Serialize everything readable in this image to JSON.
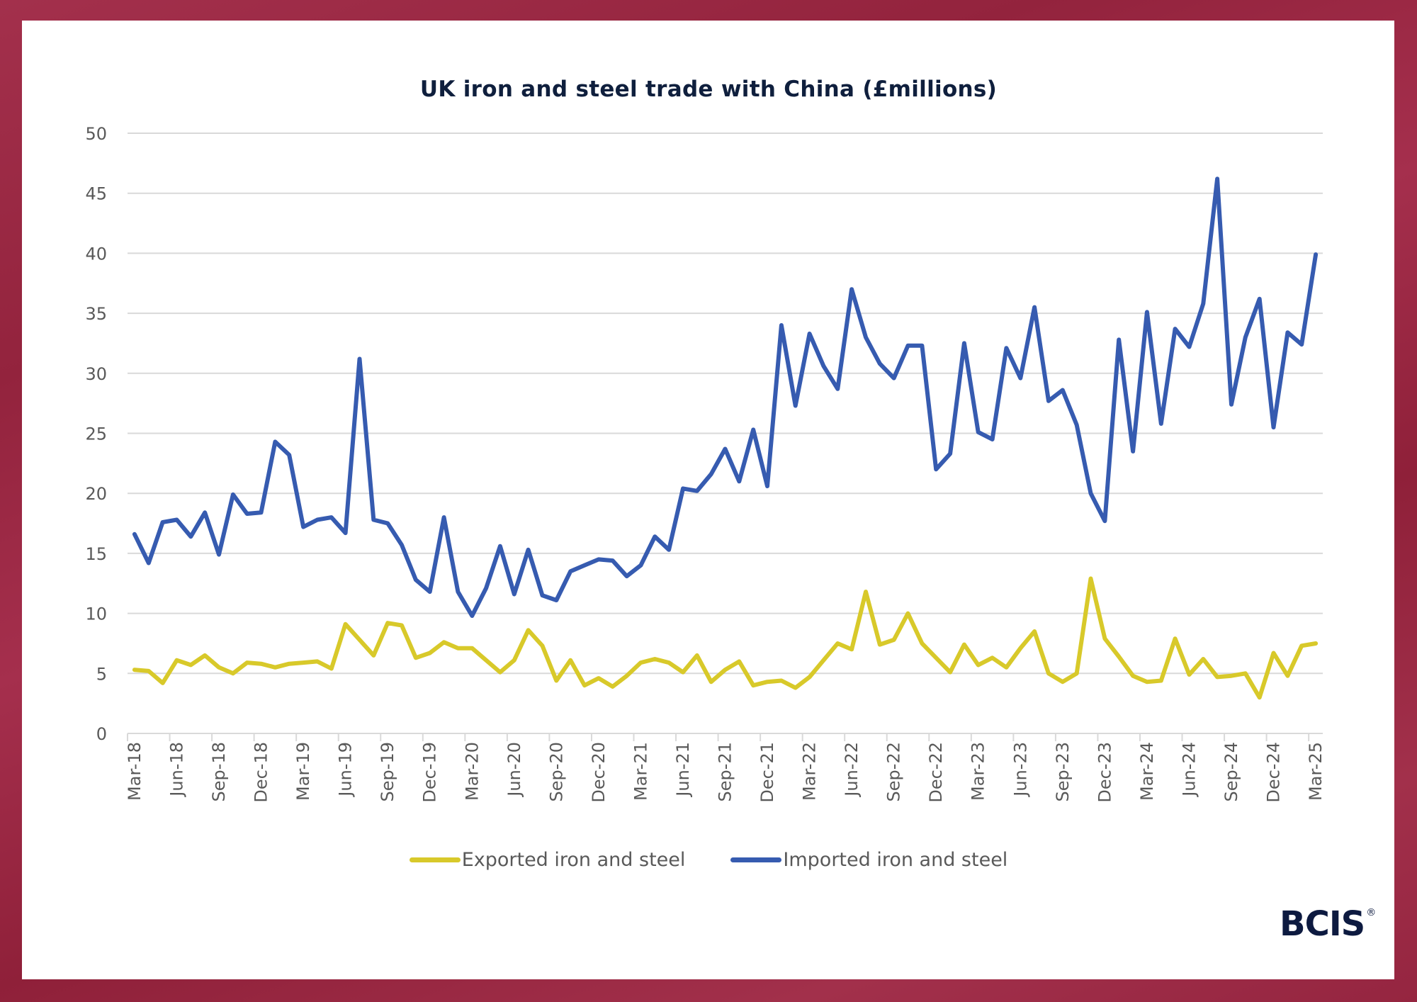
{
  "brand": {
    "logo_text": "BCIS",
    "logo_mark": "®"
  },
  "colors": {
    "exported": "#d8c92a",
    "imported": "#365bb0",
    "grid": "#d9d9d9",
    "background": "#9a2540"
  },
  "chart_data": {
    "type": "line",
    "title": "UK iron and steel trade with China (£millions)",
    "xlabel": "",
    "ylabel": "",
    "ylim": [
      0,
      50
    ],
    "yticks": [
      0,
      5,
      10,
      15,
      20,
      25,
      30,
      35,
      40,
      45,
      50
    ],
    "grid": true,
    "legend_position": "bottom",
    "x": [
      "Mar-18",
      "Apr-18",
      "May-18",
      "Jun-18",
      "Jul-18",
      "Aug-18",
      "Sep-18",
      "Oct-18",
      "Nov-18",
      "Dec-18",
      "Jan-19",
      "Feb-19",
      "Mar-19",
      "Apr-19",
      "May-19",
      "Jun-19",
      "Jul-19",
      "Aug-19",
      "Sep-19",
      "Oct-19",
      "Nov-19",
      "Dec-19",
      "Jan-20",
      "Feb-20",
      "Mar-20",
      "Apr-20",
      "May-20",
      "Jun-20",
      "Jul-20",
      "Aug-20",
      "Sep-20",
      "Oct-20",
      "Nov-20",
      "Dec-20",
      "Jan-21",
      "Feb-21",
      "Mar-21",
      "Apr-21",
      "May-21",
      "Jun-21",
      "Jul-21",
      "Aug-21",
      "Sep-21",
      "Oct-21",
      "Nov-21",
      "Dec-21",
      "Jan-22",
      "Feb-22",
      "Mar-22",
      "Apr-22",
      "May-22",
      "Jun-22",
      "Jul-22",
      "Aug-22",
      "Sep-22",
      "Oct-22",
      "Nov-22",
      "Dec-22",
      "Jan-23",
      "Feb-23",
      "Mar-23",
      "Apr-23",
      "May-23",
      "Jun-23",
      "Jul-23",
      "Aug-23",
      "Sep-23",
      "Oct-23",
      "Nov-23",
      "Dec-23",
      "Jan-24",
      "Feb-24",
      "Mar-24",
      "Apr-24",
      "May-24",
      "Jun-24",
      "Jul-24",
      "Aug-24",
      "Sep-24",
      "Oct-24",
      "Nov-24",
      "Dec-24",
      "Jan-25",
      "Feb-25",
      "Mar-25"
    ],
    "xtick_labels": [
      "Mar-18",
      "Jun-18",
      "Sep-18",
      "Dec-18",
      "Mar-19",
      "Jun-19",
      "Sep-19",
      "Dec-19",
      "Mar-20",
      "Jun-20",
      "Sep-20",
      "Dec-20",
      "Mar-21",
      "Jun-21",
      "Sep-21",
      "Dec-21",
      "Mar-22",
      "Jun-22",
      "Sep-22",
      "Dec-22",
      "Mar-23",
      "Jun-23",
      "Sep-23",
      "Dec-23",
      "Mar-24",
      "Jun-24",
      "Sep-24",
      "Dec-24",
      "Mar-25"
    ],
    "series": [
      {
        "name": "Exported iron and steel",
        "color": "#d8c92a",
        "values": [
          5.3,
          5.2,
          4.2,
          6.1,
          5.7,
          6.5,
          5.5,
          5.0,
          5.9,
          5.8,
          5.5,
          5.8,
          5.9,
          6.0,
          5.4,
          9.1,
          7.8,
          6.5,
          9.2,
          9.0,
          6.3,
          6.7,
          7.6,
          7.1,
          7.1,
          6.1,
          5.1,
          6.1,
          8.6,
          7.3,
          4.4,
          6.1,
          4.0,
          4.6,
          3.9,
          4.8,
          5.9,
          6.2,
          5.9,
          5.1,
          6.5,
          4.3,
          5.3,
          6.0,
          4.0,
          4.3,
          4.4,
          3.8,
          4.7,
          6.1,
          7.5,
          7.0,
          11.8,
          7.4,
          7.8,
          10.0,
          7.5,
          6.3,
          5.1,
          7.4,
          5.7,
          6.3,
          5.5,
          7.1,
          8.5,
          5.0,
          4.3,
          5.0,
          12.9,
          7.9,
          6.4,
          4.8,
          4.3,
          4.4,
          7.9,
          4.9,
          6.2,
          4.7,
          4.8,
          5.0,
          3.0,
          6.7,
          4.8,
          7.3,
          7.5
        ]
      },
      {
        "name": "Imported iron and steel",
        "color": "#365bb0",
        "values": [
          16.6,
          14.2,
          17.6,
          17.8,
          16.4,
          18.4,
          14.9,
          19.9,
          18.3,
          18.4,
          24.3,
          23.2,
          17.2,
          17.8,
          18.0,
          16.7,
          31.2,
          17.8,
          17.5,
          15.7,
          12.8,
          11.8,
          18.0,
          11.8,
          9.8,
          12.1,
          15.6,
          11.6,
          15.3,
          11.5,
          11.1,
          13.5,
          14.0,
          14.5,
          14.4,
          13.1,
          14.0,
          16.4,
          15.3,
          20.4,
          20.2,
          21.6,
          23.7,
          21.0,
          25.3,
          20.6,
          34.0,
          27.3,
          33.3,
          30.6,
          28.7,
          37.0,
          33.0,
          30.8,
          29.6,
          32.3,
          32.3,
          22.0,
          23.3,
          32.5,
          25.1,
          24.5,
          32.1,
          29.6,
          35.5,
          27.7,
          28.6,
          25.7,
          20.0,
          17.7,
          32.8,
          23.5,
          35.1,
          25.8,
          33.7,
          32.2,
          35.8,
          46.2,
          27.4,
          33.0,
          36.2,
          25.5,
          33.4,
          32.4,
          39.9
        ]
      }
    ]
  }
}
